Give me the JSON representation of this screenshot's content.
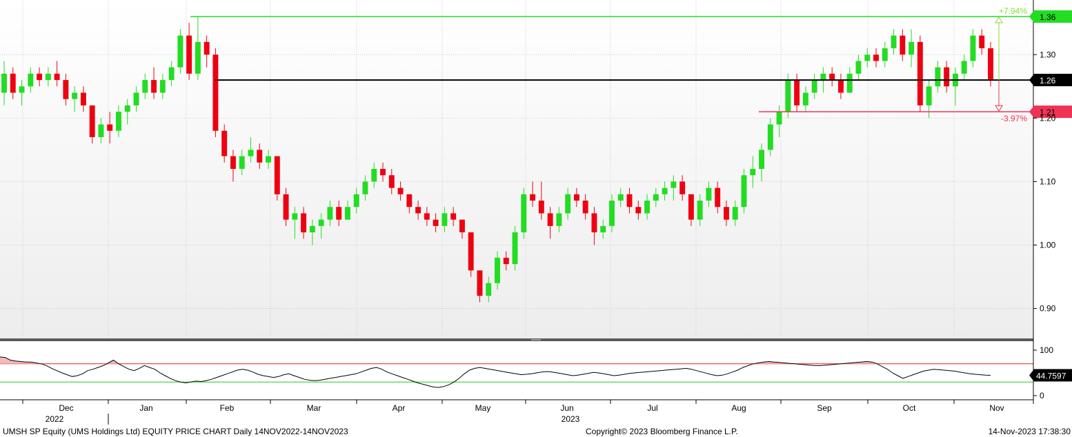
{
  "footer": {
    "description": "UMSH SP Equity (UMS Holdings Ltd) EQUITY PRICE CHART  Daily 14NOV2022-14NOV2023",
    "copyright": "Copyright© 2023 Bloomberg Finance L.P.",
    "timestamp": "14-Nov-2023 17:38:30"
  },
  "chart_data": [
    {
      "type": "candlestick",
      "ylim": [
        0.88,
        1.38
      ],
      "price_ticks": [
        "1.30",
        "1.20",
        "1.10",
        "1.00",
        "0.90"
      ],
      "x_month_labels": [
        "Dec",
        "Jan",
        "Feb",
        "Mar",
        "Apr",
        "May",
        "Jun",
        "Jul",
        "Aug",
        "Sep",
        "Oct",
        "Nov"
      ],
      "x_year_labels": [
        "2022",
        "2023"
      ],
      "levels": [
        {
          "label": "1.36",
          "value": 1.36,
          "color": "#22dd22",
          "annotation": "+7.94%"
        },
        {
          "label": "1.26",
          "value": 1.26,
          "color": "#000000"
        },
        {
          "label": "1.21",
          "value": 1.21,
          "color": "#ee3355",
          "annotation": "-3.97%"
        }
      ],
      "colors": {
        "up": "#22dd22",
        "down": "#ee0011"
      },
      "sampling": "approx. 2 trading days per candle",
      "candles": [
        [
          1.24,
          1.29,
          1.22,
          1.27
        ],
        [
          1.27,
          1.28,
          1.23,
          1.24
        ],
        [
          1.24,
          1.26,
          1.22,
          1.25
        ],
        [
          1.25,
          1.28,
          1.24,
          1.27
        ],
        [
          1.27,
          1.28,
          1.25,
          1.26
        ],
        [
          1.26,
          1.28,
          1.25,
          1.27
        ],
        [
          1.27,
          1.29,
          1.25,
          1.26
        ],
        [
          1.26,
          1.27,
          1.22,
          1.23
        ],
        [
          1.23,
          1.25,
          1.21,
          1.24
        ],
        [
          1.24,
          1.25,
          1.21,
          1.22
        ],
        [
          1.22,
          1.22,
          1.16,
          1.17
        ],
        [
          1.17,
          1.2,
          1.16,
          1.19
        ],
        [
          1.19,
          1.21,
          1.16,
          1.18
        ],
        [
          1.18,
          1.22,
          1.17,
          1.21
        ],
        [
          1.21,
          1.23,
          1.19,
          1.22
        ],
        [
          1.22,
          1.25,
          1.21,
          1.24
        ],
        [
          1.24,
          1.27,
          1.23,
          1.26
        ],
        [
          1.26,
          1.28,
          1.23,
          1.24
        ],
        [
          1.24,
          1.27,
          1.23,
          1.26
        ],
        [
          1.26,
          1.29,
          1.25,
          1.28
        ],
        [
          1.28,
          1.34,
          1.27,
          1.33
        ],
        [
          1.33,
          1.35,
          1.26,
          1.27
        ],
        [
          1.27,
          1.36,
          1.26,
          1.32
        ],
        [
          1.32,
          1.33,
          1.28,
          1.3
        ],
        [
          1.3,
          1.31,
          1.17,
          1.18
        ],
        [
          1.18,
          1.19,
          1.13,
          1.14
        ],
        [
          1.14,
          1.15,
          1.1,
          1.12
        ],
        [
          1.12,
          1.15,
          1.11,
          1.14
        ],
        [
          1.14,
          1.17,
          1.13,
          1.15
        ],
        [
          1.15,
          1.16,
          1.12,
          1.13
        ],
        [
          1.13,
          1.15,
          1.12,
          1.14
        ],
        [
          1.14,
          1.14,
          1.07,
          1.08
        ],
        [
          1.08,
          1.09,
          1.03,
          1.04
        ],
        [
          1.04,
          1.06,
          1.01,
          1.05
        ],
        [
          1.05,
          1.06,
          1.01,
          1.02
        ],
        [
          1.02,
          1.04,
          1.0,
          1.03
        ],
        [
          1.03,
          1.05,
          1.01,
          1.04
        ],
        [
          1.04,
          1.07,
          1.03,
          1.06
        ],
        [
          1.06,
          1.07,
          1.03,
          1.04
        ],
        [
          1.04,
          1.07,
          1.04,
          1.06
        ],
        [
          1.06,
          1.09,
          1.05,
          1.08
        ],
        [
          1.08,
          1.11,
          1.07,
          1.1
        ],
        [
          1.1,
          1.13,
          1.09,
          1.12
        ],
        [
          1.12,
          1.13,
          1.1,
          1.11
        ],
        [
          1.11,
          1.12,
          1.08,
          1.09
        ],
        [
          1.09,
          1.1,
          1.07,
          1.08
        ],
        [
          1.08,
          1.08,
          1.05,
          1.06
        ],
        [
          1.06,
          1.07,
          1.04,
          1.05
        ],
        [
          1.05,
          1.06,
          1.03,
          1.04
        ],
        [
          1.04,
          1.05,
          1.02,
          1.03
        ],
        [
          1.03,
          1.06,
          1.02,
          1.05
        ],
        [
          1.05,
          1.06,
          1.03,
          1.04
        ],
        [
          1.04,
          1.04,
          1.01,
          1.02
        ],
        [
          1.02,
          1.02,
          0.95,
          0.96
        ],
        [
          0.96,
          0.96,
          0.91,
          0.92
        ],
        [
          0.92,
          0.95,
          0.91,
          0.94
        ],
        [
          0.94,
          0.99,
          0.93,
          0.98
        ],
        [
          0.98,
          0.99,
          0.96,
          0.97
        ],
        [
          0.97,
          1.03,
          0.96,
          1.02
        ],
        [
          1.02,
          1.09,
          1.01,
          1.08
        ],
        [
          1.08,
          1.1,
          1.06,
          1.07
        ],
        [
          1.07,
          1.1,
          1.04,
          1.05
        ],
        [
          1.05,
          1.06,
          1.01,
          1.03
        ],
        [
          1.03,
          1.06,
          1.02,
          1.05
        ],
        [
          1.05,
          1.09,
          1.04,
          1.08
        ],
        [
          1.08,
          1.09,
          1.06,
          1.07
        ],
        [
          1.07,
          1.08,
          1.04,
          1.05
        ],
        [
          1.05,
          1.06,
          1.0,
          1.02
        ],
        [
          1.02,
          1.04,
          1.01,
          1.03
        ],
        [
          1.03,
          1.08,
          1.02,
          1.07
        ],
        [
          1.07,
          1.09,
          1.06,
          1.08
        ],
        [
          1.08,
          1.09,
          1.05,
          1.06
        ],
        [
          1.06,
          1.07,
          1.04,
          1.05
        ],
        [
          1.05,
          1.08,
          1.04,
          1.07
        ],
        [
          1.07,
          1.09,
          1.06,
          1.08
        ],
        [
          1.08,
          1.1,
          1.07,
          1.09
        ],
        [
          1.09,
          1.11,
          1.07,
          1.1
        ],
        [
          1.1,
          1.11,
          1.07,
          1.08
        ],
        [
          1.08,
          1.08,
          1.03,
          1.04
        ],
        [
          1.04,
          1.08,
          1.03,
          1.07
        ],
        [
          1.07,
          1.1,
          1.06,
          1.09
        ],
        [
          1.09,
          1.1,
          1.05,
          1.06
        ],
        [
          1.06,
          1.07,
          1.03,
          1.04
        ],
        [
          1.04,
          1.07,
          1.03,
          1.06
        ],
        [
          1.06,
          1.12,
          1.05,
          1.11
        ],
        [
          1.11,
          1.14,
          1.09,
          1.12
        ],
        [
          1.12,
          1.16,
          1.1,
          1.15
        ],
        [
          1.15,
          1.2,
          1.14,
          1.19
        ],
        [
          1.19,
          1.22,
          1.17,
          1.21
        ],
        [
          1.21,
          1.27,
          1.2,
          1.26
        ],
        [
          1.26,
          1.27,
          1.21,
          1.22
        ],
        [
          1.22,
          1.25,
          1.21,
          1.24
        ],
        [
          1.24,
          1.27,
          1.23,
          1.26
        ],
        [
          1.26,
          1.28,
          1.24,
          1.27
        ],
        [
          1.27,
          1.28,
          1.25,
          1.26
        ],
        [
          1.26,
          1.27,
          1.23,
          1.24
        ],
        [
          1.24,
          1.28,
          1.24,
          1.27
        ],
        [
          1.27,
          1.3,
          1.26,
          1.29
        ],
        [
          1.29,
          1.31,
          1.28,
          1.3
        ],
        [
          1.3,
          1.31,
          1.28,
          1.29
        ],
        [
          1.29,
          1.32,
          1.28,
          1.31
        ],
        [
          1.31,
          1.34,
          1.3,
          1.33
        ],
        [
          1.33,
          1.34,
          1.29,
          1.3
        ],
        [
          1.3,
          1.34,
          1.28,
          1.32
        ],
        [
          1.32,
          1.33,
          1.21,
          1.22
        ],
        [
          1.22,
          1.26,
          1.2,
          1.25
        ],
        [
          1.25,
          1.29,
          1.24,
          1.28
        ],
        [
          1.28,
          1.29,
          1.24,
          1.25
        ],
        [
          1.25,
          1.28,
          1.22,
          1.27
        ],
        [
          1.27,
          1.3,
          1.26,
          1.29
        ],
        [
          1.29,
          1.34,
          1.28,
          1.33
        ],
        [
          1.33,
          1.34,
          1.3,
          1.31
        ],
        [
          1.31,
          1.32,
          1.25,
          1.26
        ]
      ]
    },
    {
      "type": "line",
      "title": "",
      "ylim": [
        0,
        100
      ],
      "y_ticks": [
        "100",
        "0"
      ],
      "last_value_label": "44.7597",
      "levels": [
        {
          "value": 70,
          "color": "#dd2222"
        },
        {
          "value": 30,
          "color": "#22cc22"
        }
      ],
      "series": [
        {
          "color": "#000000",
          "values": [
            85,
            84,
            78,
            76,
            75,
            74,
            74,
            72,
            70,
            66,
            60,
            55,
            50,
            46,
            42,
            44,
            48,
            55,
            58,
            62,
            66,
            72,
            78,
            70,
            64,
            58,
            55,
            60,
            66,
            62,
            58,
            50,
            44,
            38,
            33,
            30,
            28,
            30,
            32,
            31,
            33,
            36,
            40,
            44,
            48,
            52,
            56,
            58,
            56,
            52,
            47,
            44,
            42,
            40,
            42,
            46,
            48,
            44,
            40,
            36,
            34,
            33,
            34,
            36,
            38,
            40,
            42,
            44,
            46,
            48,
            52,
            56,
            60,
            62,
            58,
            52,
            48,
            44,
            40,
            36,
            32,
            28,
            25,
            22,
            19,
            18,
            20,
            24,
            30,
            38,
            48,
            56,
            60,
            62,
            60,
            58,
            56,
            54,
            52,
            50,
            48,
            46,
            47,
            48,
            50,
            52,
            53,
            52,
            50,
            48,
            46,
            44,
            45,
            47,
            49,
            51,
            50,
            48,
            46,
            44,
            45,
            47,
            49,
            50,
            51,
            52,
            53,
            54,
            55,
            56,
            57,
            58,
            59,
            60,
            58,
            55,
            52,
            49,
            46,
            44,
            45,
            48,
            52,
            56,
            62,
            66,
            70,
            72,
            74,
            75,
            74,
            73,
            72,
            71,
            70,
            69,
            68,
            67,
            66,
            66,
            67,
            68,
            69,
            70,
            71,
            72,
            73,
            74,
            75,
            74,
            70,
            64,
            58,
            50,
            44,
            38,
            42,
            46,
            50,
            54,
            56,
            58,
            57,
            56,
            55,
            54,
            52,
            50,
            48,
            47,
            46,
            45,
            44.7597
          ]
        }
      ]
    }
  ]
}
